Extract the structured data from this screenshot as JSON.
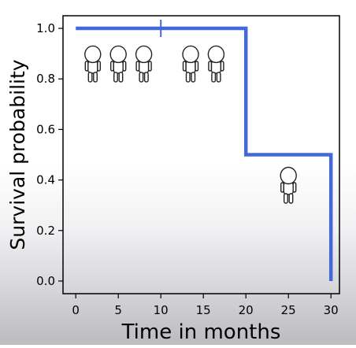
{
  "chart_data": {
    "type": "line",
    "step": true,
    "title": "",
    "xlabel": "Time in months",
    "ylabel": "Survival probability",
    "xlim": [
      -1.5,
      31
    ],
    "ylim": [
      -0.05,
      1.05
    ],
    "xticks": [
      0,
      5,
      10,
      15,
      20,
      25,
      30
    ],
    "yticks": [
      0.0,
      0.2,
      0.4,
      0.6,
      0.8,
      1.0
    ],
    "xtick_labels": [
      "0",
      "5",
      "10",
      "15",
      "20",
      "25",
      "30"
    ],
    "ytick_labels": [
      "0.0",
      "0.2",
      "0.4",
      "0.6",
      "0.8",
      "1.0"
    ],
    "grid": false,
    "series": [
      {
        "color": "#4169d8",
        "x": [
          0,
          20,
          20,
          30,
          30
        ],
        "y": [
          1.0,
          1.0,
          0.5,
          0.5,
          0.0
        ]
      }
    ],
    "censored": [
      {
        "x": 10,
        "y": 1.0
      }
    ],
    "annotations": {
      "icon": "person-icon",
      "figures": [
        {
          "x": 2,
          "y": 0.86
        },
        {
          "x": 5,
          "y": 0.86
        },
        {
          "x": 8,
          "y": 0.86
        },
        {
          "x": 13.5,
          "y": 0.86
        },
        {
          "x": 16.5,
          "y": 0.86
        },
        {
          "x": 25,
          "y": 0.38
        }
      ]
    }
  }
}
